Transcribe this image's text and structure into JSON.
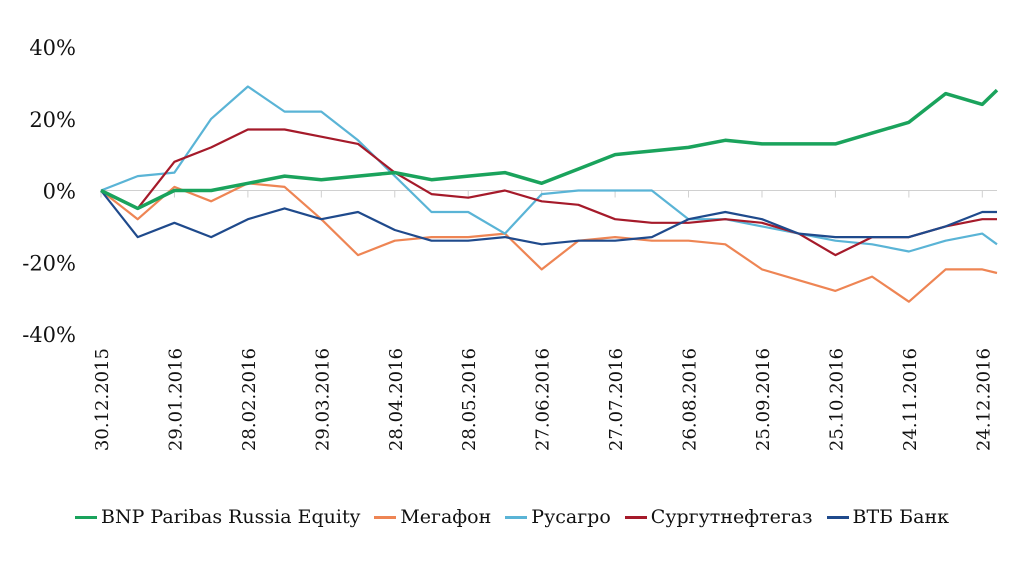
{
  "chart_data": {
    "type": "line",
    "title": "",
    "xlabel": "",
    "ylabel": "",
    "ylim": [
      -40,
      40
    ],
    "yticks": [
      "40%",
      "20%",
      "0%",
      "-20%",
      "-40%"
    ],
    "ytick_values": [
      40,
      20,
      0,
      -20,
      -40
    ],
    "xlim_days": [
      0,
      366
    ],
    "xtick_labels": [
      "30.12.2015",
      "29.01.2016",
      "28.02.2016",
      "29.03.2016",
      "28.04.2016",
      "28.05.2016",
      "27.06.2016",
      "27.07.2016",
      "26.08.2016",
      "25.09.2016",
      "25.10.2016",
      "24.11.2016",
      "24.12.2016"
    ],
    "xtick_days": [
      0,
      30,
      60,
      90,
      120,
      150,
      180,
      210,
      240,
      270,
      300,
      330,
      360
    ],
    "x_days": [
      0,
      15,
      30,
      45,
      60,
      75,
      90,
      105,
      120,
      135,
      150,
      165,
      180,
      195,
      210,
      225,
      240,
      255,
      270,
      285,
      300,
      315,
      330,
      345,
      360,
      366
    ],
    "legend_position": "bottom",
    "series": [
      {
        "name": "BNP Paribas Russia Equity",
        "color": "#1aa35c",
        "width": 3.5,
        "values": [
          0,
          -5,
          0,
          0,
          2,
          4,
          3,
          4,
          5,
          3,
          4,
          5,
          2,
          6,
          10,
          11,
          12,
          14,
          13,
          13,
          13,
          16,
          19,
          27,
          24,
          28
        ]
      },
      {
        "name": "Мегафон",
        "color": "#ee8554",
        "width": 2.2,
        "values": [
          0,
          -8,
          1,
          -3,
          2,
          1,
          -8,
          -18,
          -14,
          -13,
          -13,
          -12,
          -22,
          -14,
          -13,
          -14,
          -14,
          -15,
          -22,
          -25,
          -28,
          -24,
          -31,
          -22,
          -22,
          -23
        ]
      },
      {
        "name": "Русагро",
        "color": "#5ab4d6",
        "width": 2.2,
        "values": [
          0,
          4,
          5,
          20,
          29,
          22,
          22,
          14,
          4,
          -6,
          -6,
          -12,
          -1,
          0,
          0,
          0,
          -8,
          -8,
          -10,
          -12,
          -14,
          -15,
          -17,
          -14,
          -12,
          -15
        ]
      },
      {
        "name": "Сургутнефтегаз",
        "color": "#a51a2a",
        "width": 2.2,
        "values": [
          0,
          -5,
          8,
          12,
          17,
          17,
          15,
          13,
          5,
          -1,
          -2,
          0,
          -3,
          -4,
          -8,
          -9,
          -9,
          -8,
          -9,
          -12,
          -18,
          -13,
          -13,
          -10,
          -8,
          -8
        ]
      },
      {
        "name": "ВТБ Банк",
        "color": "#1f4a8c",
        "width": 2.2,
        "values": [
          0,
          -13,
          -9,
          -13,
          -8,
          -5,
          -8,
          -6,
          -11,
          -14,
          -14,
          -13,
          -15,
          -14,
          -14,
          -13,
          -8,
          -6,
          -8,
          -12,
          -13,
          -13,
          -13,
          -10,
          -6,
          -6
        ]
      }
    ]
  }
}
